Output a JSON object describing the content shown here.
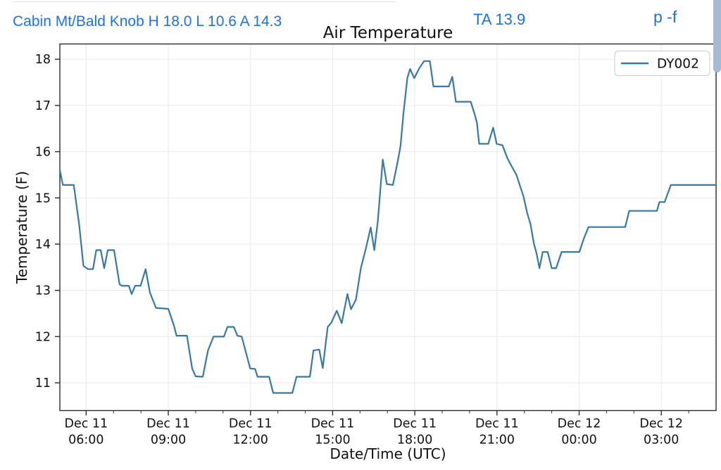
{
  "header": {
    "station_info": "Cabin Mt/Bald Knob H 18.0 L 10.6 A 14.3",
    "ta_reading": "TA 13.9",
    "page_indicator": "p -f",
    "accent_color": "#1a73e8"
  },
  "chart_data": {
    "type": "line",
    "title": "Air Temperature",
    "xlabel": "Date/Time (UTC)",
    "ylabel": "Temperature (F)",
    "grid": true,
    "legend_position": "upper right",
    "x_unit": "hours since Dec 11 00:00 UTC",
    "xlim": [
      5.04,
      29.0
    ],
    "ylim": [
      10.4,
      18.33
    ],
    "y_ticks": [
      11,
      12,
      13,
      14,
      15,
      16,
      17,
      18
    ],
    "x_major_ticks": [
      6,
      9,
      12,
      15,
      18,
      21,
      24,
      27
    ],
    "x_tick_labels": [
      [
        "Dec 11",
        "06:00"
      ],
      [
        "Dec 11",
        "09:00"
      ],
      [
        "Dec 11",
        "12:00"
      ],
      [
        "Dec 11",
        "15:00"
      ],
      [
        "Dec 11",
        "18:00"
      ],
      [
        "Dec 11",
        "21:00"
      ],
      [
        "Dec 12",
        "00:00"
      ],
      [
        "Dec 12",
        "03:00"
      ]
    ],
    "x_minor_ticks": [
      7,
      8,
      10,
      11,
      13,
      14,
      16,
      17,
      19,
      20,
      22,
      23,
      25,
      26,
      28
    ],
    "style": {
      "line_color": "#3579a8",
      "grid_color": "#e9e9e9",
      "spine_color": "#2b2b2b",
      "text_color": "#111111",
      "legend_border": "#cccccc",
      "background": "#ffffff"
    },
    "series": [
      {
        "name": "DY002",
        "color": "#3579a8",
        "points": [
          [
            5.04,
            15.6
          ],
          [
            5.15,
            15.28
          ],
          [
            5.55,
            15.28
          ],
          [
            5.75,
            14.4
          ],
          [
            5.9,
            13.53
          ],
          [
            6.07,
            13.46
          ],
          [
            6.25,
            13.46
          ],
          [
            6.37,
            13.87
          ],
          [
            6.53,
            13.87
          ],
          [
            6.66,
            13.48
          ],
          [
            6.79,
            13.87
          ],
          [
            7.02,
            13.87
          ],
          [
            7.22,
            13.13
          ],
          [
            7.3,
            13.1
          ],
          [
            7.56,
            13.1
          ],
          [
            7.66,
            12.92
          ],
          [
            7.79,
            13.1
          ],
          [
            7.99,
            13.1
          ],
          [
            8.17,
            13.46
          ],
          [
            8.33,
            12.95
          ],
          [
            8.55,
            12.62
          ],
          [
            9.0,
            12.6
          ],
          [
            9.2,
            12.25
          ],
          [
            9.3,
            12.02
          ],
          [
            9.68,
            12.02
          ],
          [
            9.87,
            11.31
          ],
          [
            10.0,
            11.14
          ],
          [
            10.26,
            11.13
          ],
          [
            10.45,
            11.7
          ],
          [
            10.65,
            12.0
          ],
          [
            11.03,
            12.0
          ],
          [
            11.16,
            12.21
          ],
          [
            11.39,
            12.21
          ],
          [
            11.52,
            12.02
          ],
          [
            11.68,
            12.0
          ],
          [
            11.86,
            11.6
          ],
          [
            11.99,
            11.31
          ],
          [
            12.17,
            11.3
          ],
          [
            12.26,
            11.13
          ],
          [
            12.68,
            11.13
          ],
          [
            12.83,
            10.78
          ],
          [
            13.53,
            10.78
          ],
          [
            13.68,
            11.13
          ],
          [
            14.17,
            11.13
          ],
          [
            14.3,
            11.7
          ],
          [
            14.51,
            11.72
          ],
          [
            14.64,
            11.32
          ],
          [
            14.82,
            12.21
          ],
          [
            14.95,
            12.3
          ],
          [
            15.15,
            12.56
          ],
          [
            15.33,
            12.29
          ],
          [
            15.54,
            12.92
          ],
          [
            15.67,
            12.59
          ],
          [
            15.85,
            12.8
          ],
          [
            16.03,
            13.48
          ],
          [
            16.21,
            13.9
          ],
          [
            16.39,
            14.36
          ],
          [
            16.52,
            13.87
          ],
          [
            16.65,
            14.5
          ],
          [
            16.83,
            15.83
          ],
          [
            16.98,
            15.3
          ],
          [
            17.2,
            15.28
          ],
          [
            17.38,
            15.8
          ],
          [
            17.48,
            16.13
          ],
          [
            17.58,
            16.8
          ],
          [
            17.73,
            17.6
          ],
          [
            17.83,
            17.79
          ],
          [
            17.98,
            17.59
          ],
          [
            18.16,
            17.8
          ],
          [
            18.34,
            17.96
          ],
          [
            18.55,
            17.96
          ],
          [
            18.68,
            17.41
          ],
          [
            19.24,
            17.41
          ],
          [
            19.37,
            17.62
          ],
          [
            19.5,
            17.08
          ],
          [
            20.04,
            17.08
          ],
          [
            20.19,
            16.8
          ],
          [
            20.27,
            16.62
          ],
          [
            20.35,
            16.17
          ],
          [
            20.68,
            16.17
          ],
          [
            20.86,
            16.52
          ],
          [
            20.99,
            16.17
          ],
          [
            21.2,
            16.14
          ],
          [
            21.38,
            15.86
          ],
          [
            21.51,
            15.71
          ],
          [
            21.71,
            15.5
          ],
          [
            21.97,
            15.03
          ],
          [
            22.1,
            14.68
          ],
          [
            22.22,
            14.44
          ],
          [
            22.35,
            14.01
          ],
          [
            22.45,
            13.79
          ],
          [
            22.55,
            13.48
          ],
          [
            22.67,
            13.83
          ],
          [
            22.85,
            13.83
          ],
          [
            23.0,
            13.48
          ],
          [
            23.16,
            13.48
          ],
          [
            23.36,
            13.83
          ],
          [
            24.01,
            13.83
          ],
          [
            24.16,
            14.1
          ],
          [
            24.34,
            14.37
          ],
          [
            25.68,
            14.37
          ],
          [
            25.83,
            14.72
          ],
          [
            26.84,
            14.72
          ],
          [
            26.93,
            14.91
          ],
          [
            27.12,
            14.91
          ],
          [
            27.35,
            15.28
          ],
          [
            29.0,
            15.28
          ]
        ]
      }
    ]
  }
}
